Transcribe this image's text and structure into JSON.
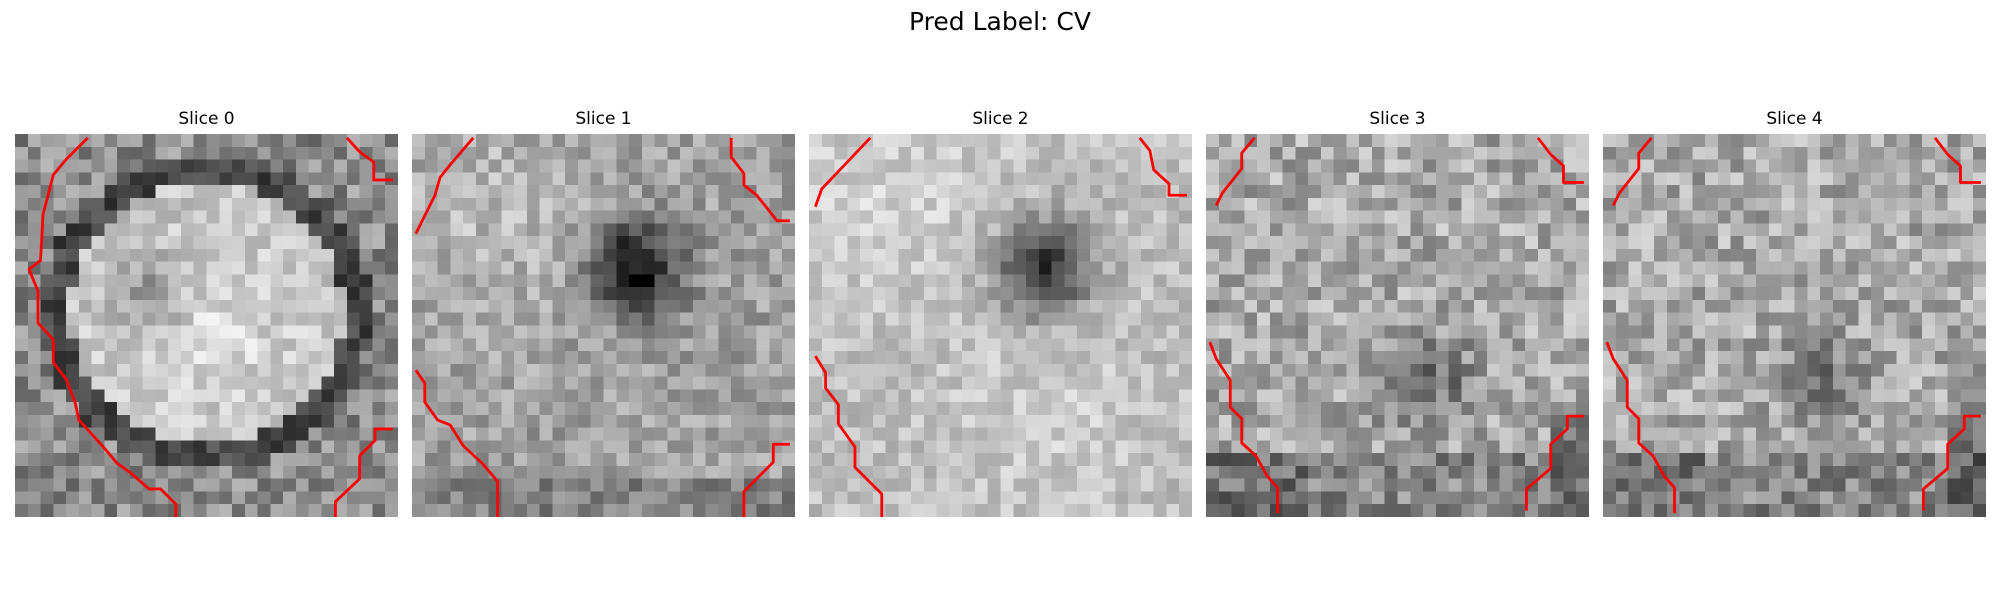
{
  "figure": {
    "title": "Pred Label: CV",
    "slices": [
      {
        "label": "Slice 0",
        "seed": 11,
        "variant": "ring"
      },
      {
        "label": "Slice 1",
        "seed": 23,
        "variant": "dark-spot"
      },
      {
        "label": "Slice 2",
        "seed": 37,
        "variant": "dark-spot-bright"
      },
      {
        "label": "Slice 3",
        "seed": 51,
        "variant": "noisy"
      },
      {
        "label": "Slice 4",
        "seed": 67,
        "variant": "noisy"
      }
    ],
    "contour_color": "#ff0000"
  }
}
